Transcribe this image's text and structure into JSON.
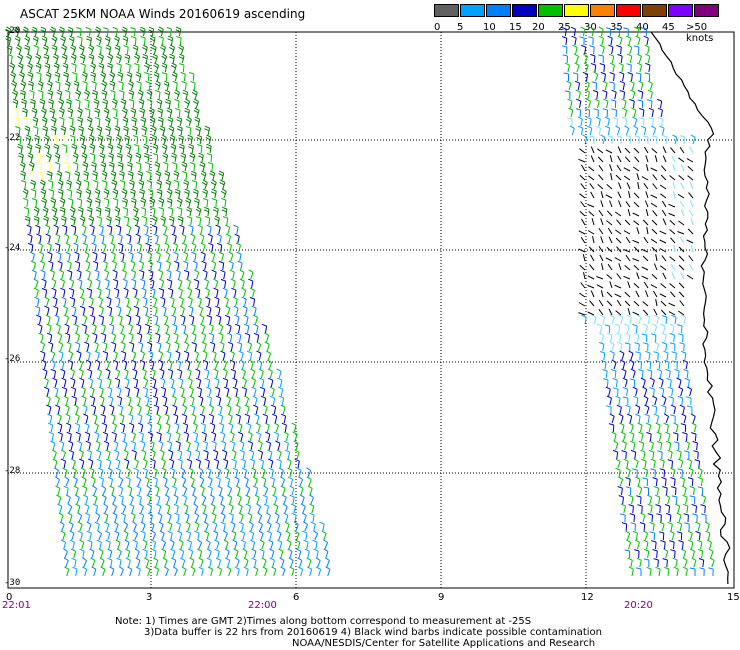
{
  "title": "ASCAT 25KM NOAA Winds 20160619 ascending",
  "legend": {
    "labels": [
      "0",
      "5",
      "10",
      "15",
      "20",
      "25",
      "30",
      "35",
      "40",
      "45",
      ">50 knots"
    ],
    "colors": [
      "#606060",
      "#00a0ff",
      "#0080ff",
      "#0000c0",
      "#00c000",
      "#ffff00",
      "#ff8000",
      "#ff0000",
      "#804000",
      "#8000ff",
      "#800080"
    ]
  },
  "axes": {
    "y_labels": [
      "-20",
      "-22",
      "-24",
      "-26",
      "-28",
      "-30"
    ],
    "x_labels": [
      "0",
      "3",
      "6",
      "9",
      "12",
      "15"
    ]
  },
  "times": {
    "left": "22:01",
    "mid": "22:00",
    "right": "20:20"
  },
  "notes": {
    "line1": "Note: 1) Times are GMT 2)Times along bottom correspond to measurement at -25S",
    "line2": "3)Data buffer is 22 hrs from 20160619 4) Black wind barbs indicate possible contamination",
    "line3": "NOAA/NESDIS/Center for Satellite Applications and Research"
  }
}
